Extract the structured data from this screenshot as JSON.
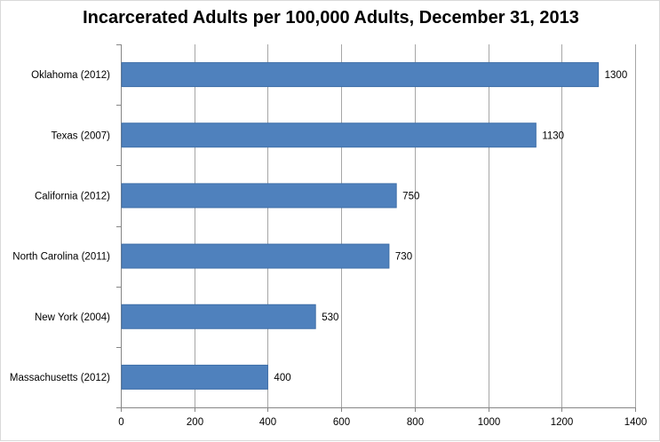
{
  "chart_data": {
    "type": "bar",
    "orientation": "horizontal",
    "title": "Incarcerated Adults per 100,000 Adults, December 31, 2013",
    "xlabel": "",
    "ylabel": "",
    "categories": [
      "Oklahoma (2012)",
      "Texas (2007)",
      "California (2012)",
      "North Carolina (2011)",
      "New York (2004)",
      "Massachusetts (2012)"
    ],
    "values": [
      1300,
      1130,
      750,
      730,
      530,
      400
    ],
    "xlim": [
      0,
      1400
    ],
    "xticks": [
      0,
      200,
      400,
      600,
      800,
      1000,
      1200,
      1400
    ],
    "grid": "vertical",
    "legend": "none",
    "bar_color": "#4f81bd",
    "bar_border_color": "#3f6fa8",
    "grid_color": "#a6a6a6"
  }
}
